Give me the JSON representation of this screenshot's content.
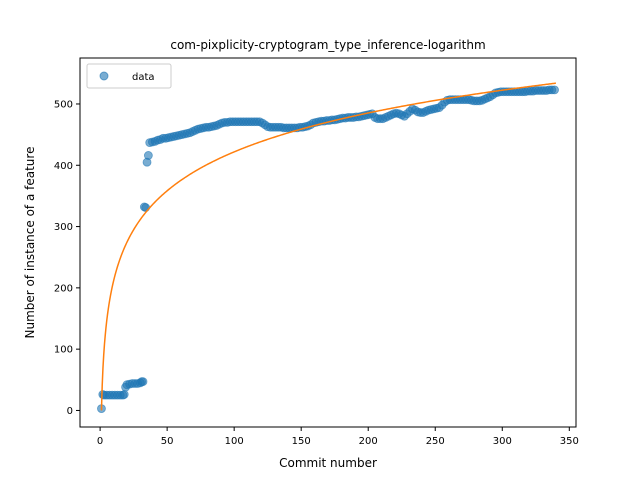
{
  "chart_data": {
    "type": "scatter",
    "title": "com-pixplicity-cryptogram_type_inference-logarithm",
    "xlabel": "Commit number",
    "ylabel": "Number of instance of a feature",
    "xlim": [
      -15,
      355
    ],
    "ylim": [
      -27,
      575
    ],
    "xticks": [
      0,
      50,
      100,
      150,
      200,
      250,
      300,
      350
    ],
    "yticks": [
      0,
      100,
      200,
      300,
      400,
      500
    ],
    "legend": {
      "placement": "upper-left",
      "entries": [
        "data"
      ]
    },
    "colors": {
      "data": "#1f77b4",
      "fit": "#ff7f0e"
    },
    "series": [
      {
        "name": "data",
        "kind": "scatter",
        "points": [
          [
            1,
            3
          ],
          [
            2,
            26
          ],
          [
            3,
            25
          ],
          [
            5,
            25
          ],
          [
            7,
            25
          ],
          [
            9,
            25
          ],
          [
            11,
            25
          ],
          [
            13,
            25
          ],
          [
            15,
            25
          ],
          [
            17,
            25
          ],
          [
            18,
            26
          ],
          [
            19,
            38
          ],
          [
            20,
            42
          ],
          [
            22,
            43
          ],
          [
            24,
            44
          ],
          [
            26,
            44
          ],
          [
            28,
            44
          ],
          [
            30,
            45
          ],
          [
            31,
            47
          ],
          [
            32,
            47
          ],
          [
            33,
            332
          ],
          [
            34,
            331
          ],
          [
            35,
            405
          ],
          [
            36,
            416
          ],
          [
            37,
            437
          ],
          [
            39,
            438
          ],
          [
            41,
            439
          ],
          [
            43,
            441
          ],
          [
            45,
            442
          ],
          [
            47,
            444
          ],
          [
            49,
            444
          ],
          [
            51,
            445
          ],
          [
            53,
            446
          ],
          [
            55,
            447
          ],
          [
            57,
            448
          ],
          [
            59,
            449
          ],
          [
            61,
            450
          ],
          [
            63,
            451
          ],
          [
            65,
            452
          ],
          [
            67,
            453
          ],
          [
            69,
            455
          ],
          [
            71,
            457
          ],
          [
            73,
            459
          ],
          [
            75,
            460
          ],
          [
            77,
            461
          ],
          [
            79,
            462
          ],
          [
            81,
            462
          ],
          [
            83,
            463
          ],
          [
            85,
            464
          ],
          [
            87,
            465
          ],
          [
            89,
            467
          ],
          [
            91,
            469
          ],
          [
            93,
            470
          ],
          [
            95,
            470
          ],
          [
            97,
            471
          ],
          [
            99,
            471
          ],
          [
            101,
            471
          ],
          [
            103,
            471
          ],
          [
            105,
            471
          ],
          [
            107,
            471
          ],
          [
            109,
            471
          ],
          [
            111,
            471
          ],
          [
            113,
            471
          ],
          [
            115,
            471
          ],
          [
            117,
            471
          ],
          [
            119,
            471
          ],
          [
            121,
            469
          ],
          [
            123,
            466
          ],
          [
            125,
            463
          ],
          [
            127,
            462
          ],
          [
            129,
            462
          ],
          [
            131,
            462
          ],
          [
            133,
            462
          ],
          [
            135,
            462
          ],
          [
            137,
            461
          ],
          [
            139,
            461
          ],
          [
            141,
            461
          ],
          [
            143,
            461
          ],
          [
            145,
            461
          ],
          [
            147,
            461
          ],
          [
            149,
            462
          ],
          [
            151,
            462
          ],
          [
            153,
            463
          ],
          [
            155,
            464
          ],
          [
            157,
            466
          ],
          [
            159,
            469
          ],
          [
            161,
            470
          ],
          [
            163,
            471
          ],
          [
            165,
            472
          ],
          [
            167,
            472
          ],
          [
            169,
            473
          ],
          [
            171,
            473
          ],
          [
            173,
            474
          ],
          [
            175,
            474
          ],
          [
            177,
            475
          ],
          [
            179,
            476
          ],
          [
            181,
            477
          ],
          [
            183,
            477
          ],
          [
            185,
            478
          ],
          [
            187,
            478
          ],
          [
            189,
            478
          ],
          [
            191,
            479
          ],
          [
            193,
            479
          ],
          [
            195,
            480
          ],
          [
            197,
            481
          ],
          [
            199,
            482
          ],
          [
            201,
            483
          ],
          [
            203,
            484
          ],
          [
            205,
            478
          ],
          [
            207,
            476
          ],
          [
            209,
            476
          ],
          [
            211,
            476
          ],
          [
            213,
            478
          ],
          [
            215,
            480
          ],
          [
            217,
            482
          ],
          [
            219,
            484
          ],
          [
            221,
            485
          ],
          [
            223,
            484
          ],
          [
            225,
            482
          ],
          [
            227,
            480
          ],
          [
            229,
            484
          ],
          [
            231,
            488
          ],
          [
            233,
            492
          ],
          [
            235,
            490
          ],
          [
            237,
            487
          ],
          [
            239,
            486
          ],
          [
            241,
            486
          ],
          [
            243,
            488
          ],
          [
            245,
            490
          ],
          [
            247,
            491
          ],
          [
            249,
            492
          ],
          [
            251,
            493
          ],
          [
            253,
            494
          ],
          [
            255,
            498
          ],
          [
            257,
            503
          ],
          [
            259,
            506
          ],
          [
            261,
            507
          ],
          [
            263,
            507
          ],
          [
            265,
            507
          ],
          [
            267,
            507
          ],
          [
            269,
            507
          ],
          [
            271,
            507
          ],
          [
            273,
            507
          ],
          [
            275,
            507
          ],
          [
            277,
            506
          ],
          [
            279,
            505
          ],
          [
            281,
            505
          ],
          [
            283,
            505
          ],
          [
            285,
            506
          ],
          [
            287,
            508
          ],
          [
            289,
            510
          ],
          [
            291,
            512
          ],
          [
            293,
            515
          ],
          [
            295,
            518
          ],
          [
            297,
            519
          ],
          [
            299,
            520
          ],
          [
            301,
            520
          ],
          [
            303,
            520
          ],
          [
            305,
            520
          ],
          [
            307,
            520
          ],
          [
            309,
            520
          ],
          [
            311,
            520
          ],
          [
            313,
            520
          ],
          [
            315,
            520
          ],
          [
            317,
            520
          ],
          [
            319,
            521
          ],
          [
            321,
            521
          ],
          [
            323,
            521
          ],
          [
            325,
            522
          ],
          [
            327,
            522
          ],
          [
            329,
            522
          ],
          [
            331,
            522
          ],
          [
            333,
            522
          ],
          [
            335,
            523
          ],
          [
            337,
            523
          ],
          [
            339,
            523
          ]
        ]
      },
      {
        "name": "",
        "kind": "line",
        "model": "logarithm",
        "params": {
          "a": 91.6,
          "b": 0
        },
        "x_range": [
          1,
          340
        ]
      }
    ]
  }
}
